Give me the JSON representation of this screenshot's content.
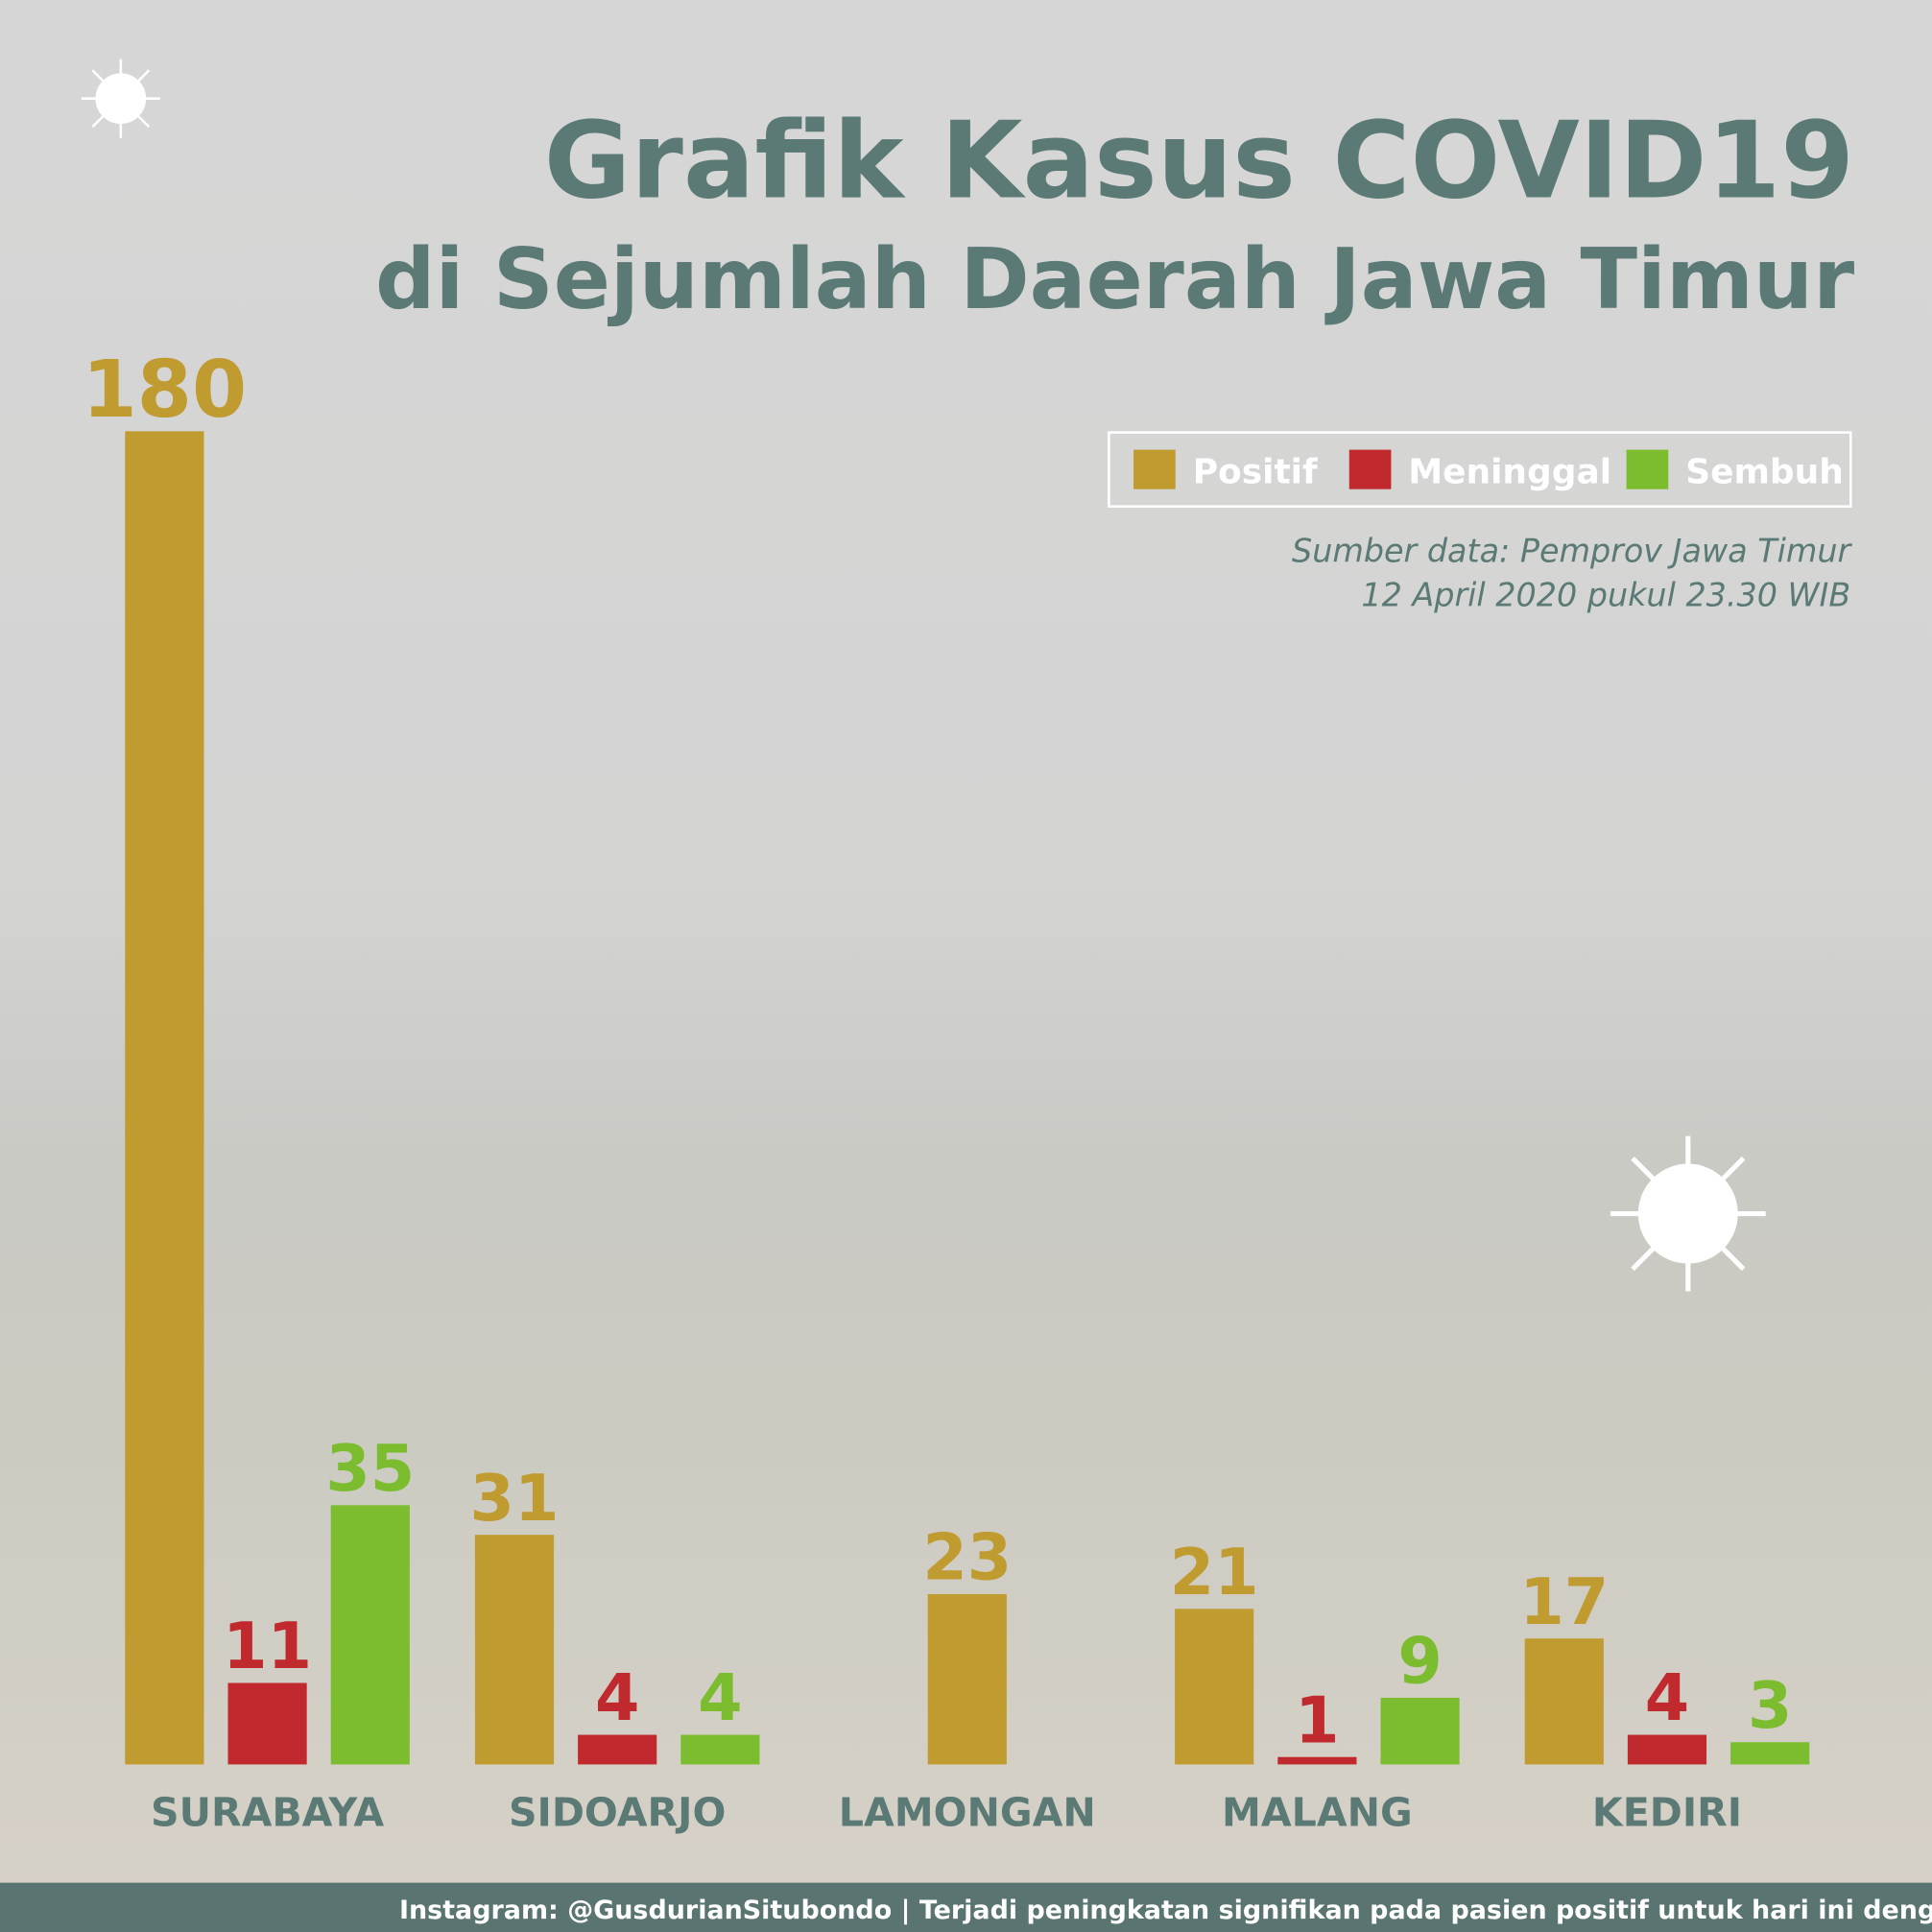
{
  "chart_data": {
    "type": "bar",
    "title": "Grafik Kasus COVID19",
    "subtitle": "di Sejumlah Daerah Jawa Timur",
    "source": [
      "Sumber data: Pemprov Jawa Timur",
      "12 April 2020 pukul 23.30 WIB"
    ],
    "footer": "Instagram: @GusdurianSitubondo | Terjadi peningkatan signifikan pada pasien positif untuk hari ini dengan kenaika",
    "categories": [
      "SURABAYA",
      "SIDOARJO",
      "LAMONGAN",
      "MALANG",
      "KEDIRI"
    ],
    "series": [
      {
        "name": "Positif",
        "color": "#bf9b30",
        "values": [
          180,
          31,
          23,
          21,
          17
        ]
      },
      {
        "name": "Meninggal",
        "color": "#c0292e",
        "values": [
          11,
          4,
          null,
          1,
          4
        ]
      },
      {
        "name": "Sembuh",
        "color": "#7bbd2f",
        "values": [
          35,
          4,
          null,
          9,
          3
        ]
      }
    ]
  }
}
